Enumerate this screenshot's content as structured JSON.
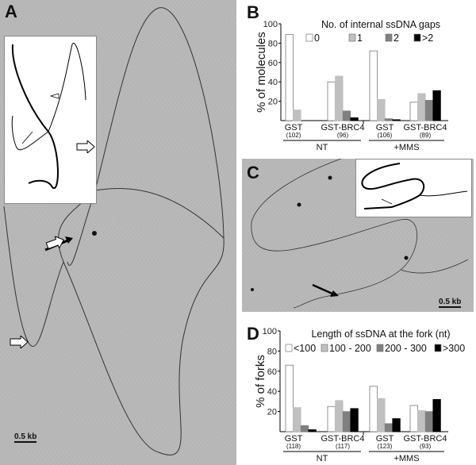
{
  "panels": {
    "A": {
      "label": "A",
      "scale_bar": "0.5 kb"
    },
    "B": {
      "label": "B"
    },
    "C": {
      "label": "C",
      "scale_bar": "0.5 kb"
    },
    "D": {
      "label": "D"
    }
  },
  "chart_data": [
    {
      "type": "bar",
      "panel": "B",
      "title": "No. of internal ssDNA gaps",
      "ylabel": "% of molecules",
      "ylim": [
        0,
        100
      ],
      "yticks": [
        20,
        40,
        60,
        80,
        100
      ],
      "grid": false,
      "legend_position": "top",
      "categories": [
        "GST",
        "GST-BRC4",
        "GST",
        "GST-BRC4"
      ],
      "category_counts": [
        "(102)",
        "(96)",
        "(106)",
        "(89)"
      ],
      "groups": [
        {
          "label": "NT",
          "categories": [
            0,
            1
          ]
        },
        {
          "label": "+MMS",
          "categories": [
            2,
            3
          ]
        }
      ],
      "series": [
        {
          "name": "0",
          "color": "#ffffff",
          "values": [
            89,
            40,
            72,
            19
          ]
        },
        {
          "name": "1",
          "color": "#c0c0c0",
          "values": [
            11,
            46,
            22,
            28
          ]
        },
        {
          "name": "2",
          "color": "#808080",
          "values": [
            0,
            10,
            2,
            21
          ]
        },
        {
          "name": ">2",
          "color": "#000000",
          "values": [
            0,
            3,
            1,
            31
          ]
        }
      ]
    },
    {
      "type": "bar",
      "panel": "D",
      "title": "Length of ssDNA at the fork (nt)",
      "ylabel": "% of forks",
      "ylim": [
        0,
        100
      ],
      "yticks": [
        20,
        40,
        60,
        80,
        100
      ],
      "grid": false,
      "legend_position": "top",
      "categories": [
        "GST",
        "GST-BRC4",
        "GST",
        "GST-BRC4"
      ],
      "category_counts": [
        "(118)",
        "(117)",
        "(123)",
        "(93)"
      ],
      "groups": [
        {
          "label": "NT",
          "categories": [
            0,
            1
          ]
        },
        {
          "label": "+MMS",
          "categories": [
            2,
            3
          ]
        }
      ],
      "series": [
        {
          "name": "<100",
          "color": "#ffffff",
          "values": [
            66,
            25,
            45,
            26
          ]
        },
        {
          "name": "100 - 200",
          "color": "#c0c0c0",
          "values": [
            24,
            31,
            33,
            21
          ]
        },
        {
          "name": "200 - 300",
          "color": "#808080",
          "values": [
            6,
            20,
            8,
            20
          ]
        },
        {
          "name": ">300",
          "color": "#000000",
          "values": [
            2,
            23,
            13,
            32
          ]
        }
      ]
    }
  ]
}
